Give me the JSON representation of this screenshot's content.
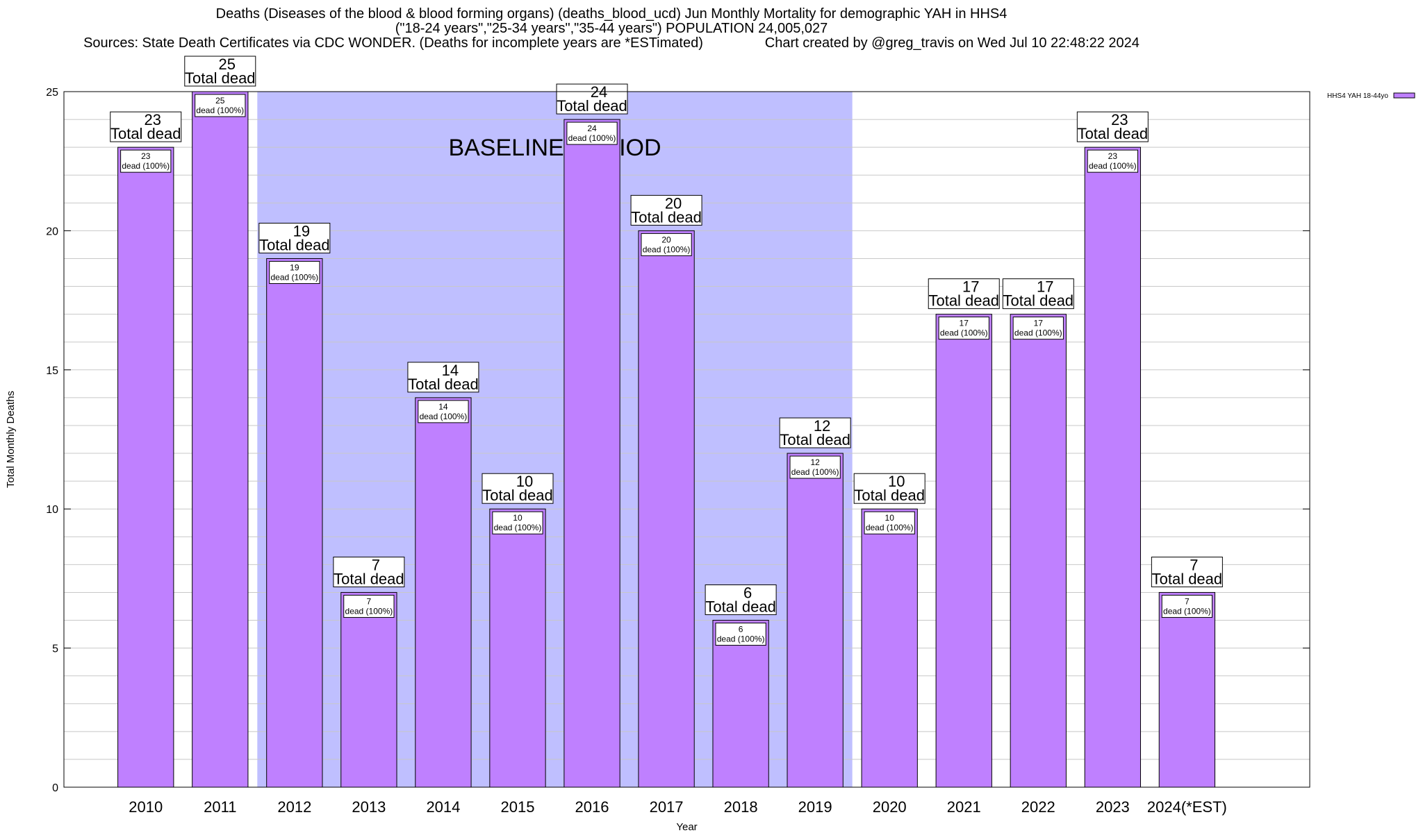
{
  "chart_data": {
    "type": "bar",
    "title_lines": [
      "Deaths (Diseases of the blood & blood forming organs) (deaths_blood_ucd) Jun Monthly Mortality for demographic YAH in HHS4",
      "(\"18-24 years\",\"25-34 years\",\"35-44 years\") POPULATION 24,005,027",
      "Sources: State Death Certificates via CDC WONDER. (Deaths for incomplete years are *ESTimated)                Chart created by @greg_travis on Wed Jul 10 22:48:22 2024"
    ],
    "xlabel": "Year",
    "ylabel": "Total Monthly Deaths",
    "ylim": [
      0,
      25
    ],
    "yticks": [
      0,
      5,
      10,
      15,
      20,
      25
    ],
    "categories": [
      "2010",
      "2011",
      "2012",
      "2013",
      "2014",
      "2015",
      "2016",
      "2017",
      "2018",
      "2019",
      "2020",
      "2021",
      "2022",
      "2023",
      "2024(*EST)"
    ],
    "series": [
      {
        "name": "HHS4 YAH 18-44yo",
        "color": "#bf80ff",
        "values": [
          23,
          25,
          19,
          7,
          14,
          10,
          24,
          20,
          6,
          12,
          10,
          17,
          17,
          23,
          7
        ]
      }
    ],
    "bar_label_small": "dead (100%)",
    "bar_label_big": "Total dead",
    "baseline": {
      "label": "BASELINE PERIOD",
      "start": "2012",
      "end": "2019",
      "color": "#bfbfff"
    },
    "grid": true,
    "legend_position": "top-right"
  }
}
